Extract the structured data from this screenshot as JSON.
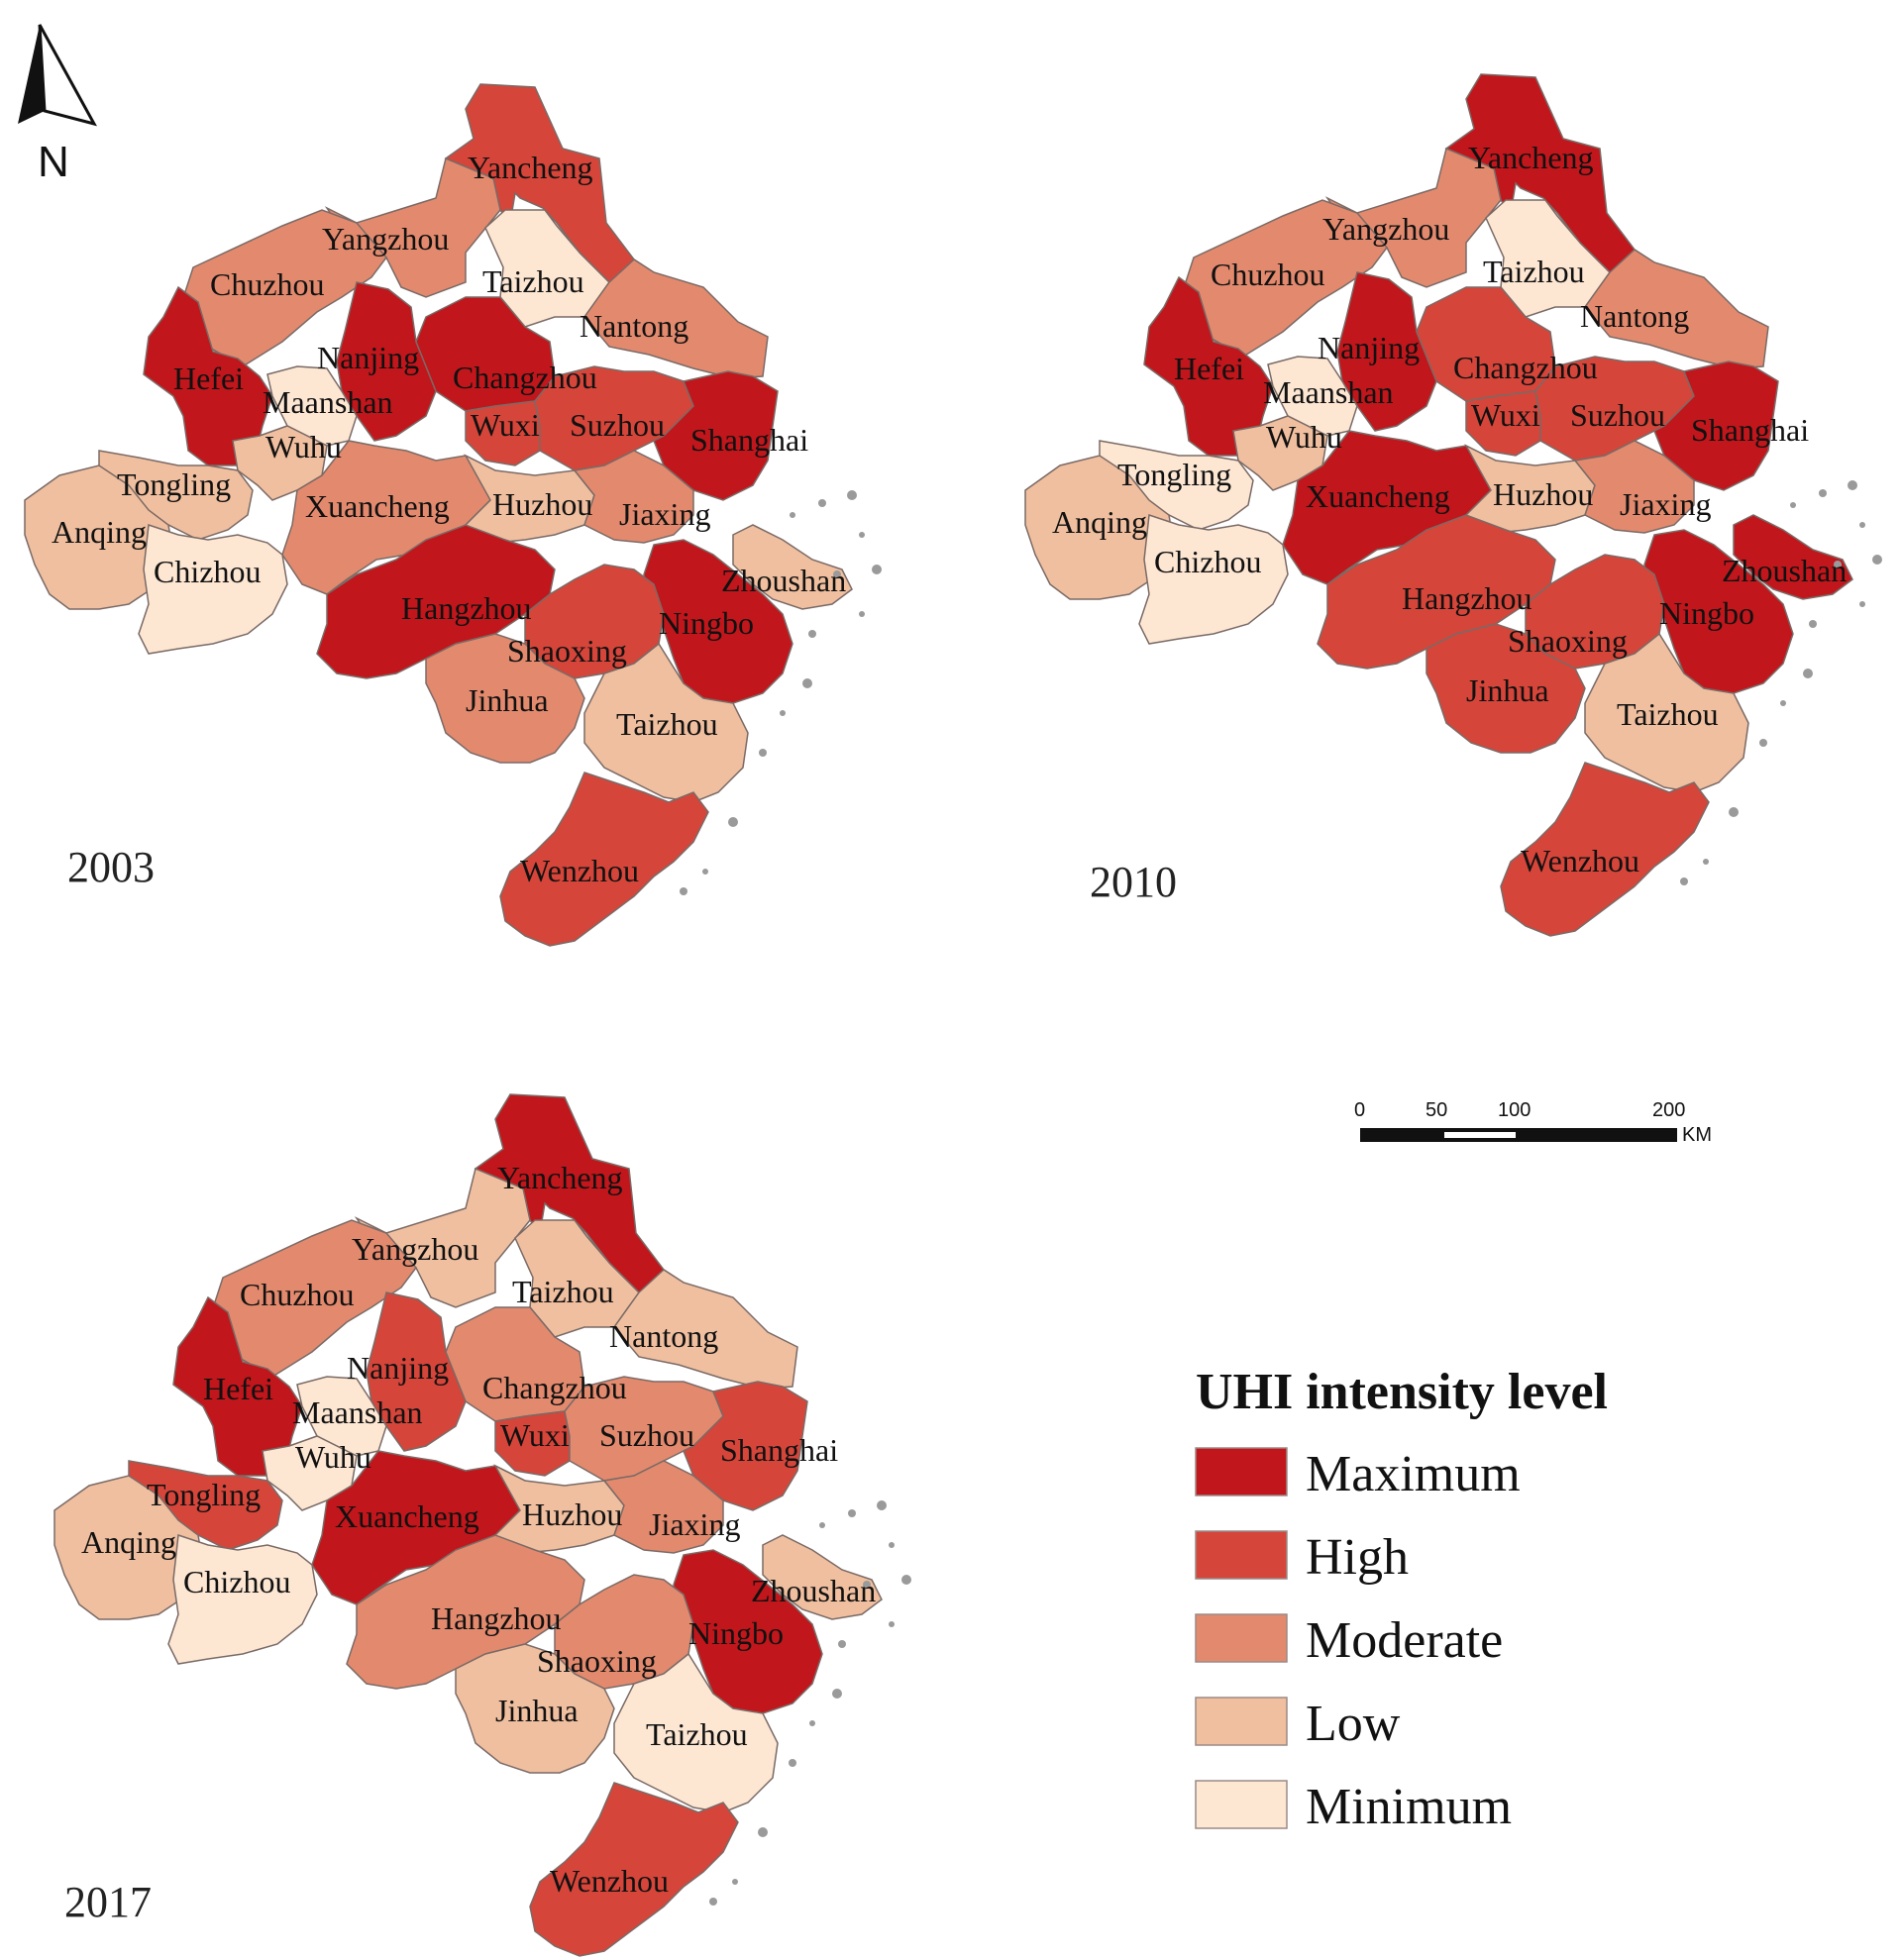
{
  "levels": {
    "Maximum": "#c1161b",
    "High": "#d6453a",
    "Moderate": "#e38a6e",
    "Low": "#f0bf9f",
    "Minimum": "#fde7d3"
  },
  "legend": {
    "title": "UHI intensity level",
    "items": [
      "Maximum",
      "High",
      "Moderate",
      "Low",
      "Minimum"
    ]
  },
  "north_arrow": {
    "label": "N"
  },
  "scale_bar": {
    "ticks": [
      "0",
      "50",
      "100",
      "200"
    ],
    "unit": "KM"
  },
  "panels": [
    {
      "year": "2003",
      "cities": [
        {
          "name": "Yancheng",
          "level": "High"
        },
        {
          "name": "Yangzhou",
          "level": "Moderate"
        },
        {
          "name": "Taizhou",
          "level": "Minimum"
        },
        {
          "name": "Chuzhou",
          "level": "Moderate"
        },
        {
          "name": "Nantong",
          "level": "Moderate"
        },
        {
          "name": "Hefei",
          "level": "Maximum"
        },
        {
          "name": "Nanjing",
          "level": "Maximum"
        },
        {
          "name": "Changzhou",
          "level": "Maximum"
        },
        {
          "name": "Maanshan",
          "level": "Minimum"
        },
        {
          "name": "Wuxi",
          "level": "High"
        },
        {
          "name": "Suzhou",
          "level": "High"
        },
        {
          "name": "Shanghai",
          "level": "Maximum"
        },
        {
          "name": "Wuhu",
          "level": "Low"
        },
        {
          "name": "Tongling",
          "level": "Low"
        },
        {
          "name": "Anqing",
          "level": "Low"
        },
        {
          "name": "Xuancheng",
          "level": "Moderate"
        },
        {
          "name": "Huzhou",
          "level": "Low"
        },
        {
          "name": "Jiaxing",
          "level": "Moderate"
        },
        {
          "name": "Chizhou",
          "level": "Minimum"
        },
        {
          "name": "Zhoushan",
          "level": "Low"
        },
        {
          "name": "Hangzhou",
          "level": "Maximum"
        },
        {
          "name": "Ningbo",
          "level": "Maximum"
        },
        {
          "name": "Shaoxing",
          "level": "High"
        },
        {
          "name": "Jinhua",
          "level": "Moderate"
        },
        {
          "name": "Taizhou",
          "level": "Low"
        },
        {
          "name": "Wenzhou",
          "level": "High"
        }
      ]
    },
    {
      "year": "2010",
      "cities": [
        {
          "name": "Yancheng",
          "level": "Maximum"
        },
        {
          "name": "Yangzhou",
          "level": "Moderate"
        },
        {
          "name": "Taizhou",
          "level": "Minimum"
        },
        {
          "name": "Chuzhou",
          "level": "Moderate"
        },
        {
          "name": "Nantong",
          "level": "Moderate"
        },
        {
          "name": "Hefei",
          "level": "Maximum"
        },
        {
          "name": "Nanjing",
          "level": "Maximum"
        },
        {
          "name": "Changzhou",
          "level": "High"
        },
        {
          "name": "Maanshan",
          "level": "Minimum"
        },
        {
          "name": "Wuxi",
          "level": "High"
        },
        {
          "name": "Suzhou",
          "level": "High"
        },
        {
          "name": "Shanghai",
          "level": "Maximum"
        },
        {
          "name": "Wuhu",
          "level": "Low"
        },
        {
          "name": "Tongling",
          "level": "Minimum"
        },
        {
          "name": "Anqing",
          "level": "Low"
        },
        {
          "name": "Xuancheng",
          "level": "Maximum"
        },
        {
          "name": "Huzhou",
          "level": "Low"
        },
        {
          "name": "Jiaxing",
          "level": "Moderate"
        },
        {
          "name": "Chizhou",
          "level": "Minimum"
        },
        {
          "name": "Zhoushan",
          "level": "Maximum"
        },
        {
          "name": "Hangzhou",
          "level": "High"
        },
        {
          "name": "Ningbo",
          "level": "Maximum"
        },
        {
          "name": "Shaoxing",
          "level": "High"
        },
        {
          "name": "Jinhua",
          "level": "High"
        },
        {
          "name": "Taizhou",
          "level": "Low"
        },
        {
          "name": "Wenzhou",
          "level": "High"
        }
      ]
    },
    {
      "year": "2017",
      "cities": [
        {
          "name": "Yancheng",
          "level": "Maximum"
        },
        {
          "name": "Yangzhou",
          "level": "Low"
        },
        {
          "name": "Taizhou",
          "level": "Low"
        },
        {
          "name": "Chuzhou",
          "level": "Moderate"
        },
        {
          "name": "Nantong",
          "level": "Low"
        },
        {
          "name": "Hefei",
          "level": "Maximum"
        },
        {
          "name": "Nanjing",
          "level": "High"
        },
        {
          "name": "Changzhou",
          "level": "Moderate"
        },
        {
          "name": "Maanshan",
          "level": "Minimum"
        },
        {
          "name": "Wuxi",
          "level": "High"
        },
        {
          "name": "Suzhou",
          "level": "Moderate"
        },
        {
          "name": "Shanghai",
          "level": "High"
        },
        {
          "name": "Wuhu",
          "level": "Minimum"
        },
        {
          "name": "Tongling",
          "level": "High"
        },
        {
          "name": "Anqing",
          "level": "Low"
        },
        {
          "name": "Xuancheng",
          "level": "Maximum"
        },
        {
          "name": "Huzhou",
          "level": "Low"
        },
        {
          "name": "Jiaxing",
          "level": "Moderate"
        },
        {
          "name": "Chizhou",
          "level": "Minimum"
        },
        {
          "name": "Zhoushan",
          "level": "Low"
        },
        {
          "name": "Hangzhou",
          "level": "Moderate"
        },
        {
          "name": "Ningbo",
          "level": "Maximum"
        },
        {
          "name": "Shaoxing",
          "level": "Moderate"
        },
        {
          "name": "Jinhua",
          "level": "Low"
        },
        {
          "name": "Taizhou",
          "level": "Minimum"
        },
        {
          "name": "Wenzhou",
          "level": "High"
        }
      ]
    }
  ]
}
